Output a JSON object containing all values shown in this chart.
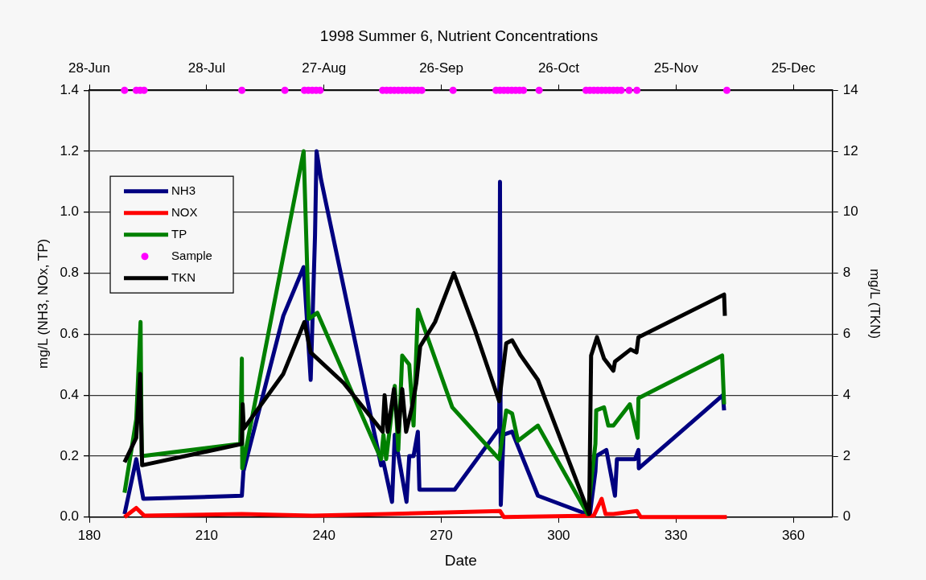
{
  "chart_data": {
    "type": "line",
    "title": "1998 Summer 6, Nutrient Concentrations",
    "xlabel": "Date",
    "ylabel": "mg/L (NH3, NOx, TP)",
    "y2label": "mg/L (TKN)",
    "xlim": [
      180,
      370
    ],
    "xticks": [
      180,
      210,
      240,
      270,
      300,
      330,
      360
    ],
    "x2lim": [
      "1998-06-28",
      "1999-01-04"
    ],
    "x2ticks": [
      {
        "value": "1998-06-28",
        "label": "28-Jun"
      },
      {
        "value": "1998-07-28",
        "label": "28-Jul"
      },
      {
        "value": "1998-08-27",
        "label": "27-Aug"
      },
      {
        "value": "1998-09-26",
        "label": "26-Sep"
      },
      {
        "value": "1998-10-26",
        "label": "26-Oct"
      },
      {
        "value": "1998-11-25",
        "label": "25-Nov"
      },
      {
        "value": "1998-12-25",
        "label": "25-Dec"
      }
    ],
    "ylim": [
      0,
      1.4
    ],
    "yticks": [
      {
        "value": 0,
        "label": "0.0"
      },
      {
        "value": 0.2,
        "label": "0.2"
      },
      {
        "value": 0.4,
        "label": "0.4"
      },
      {
        "value": 0.6,
        "label": "0.6"
      },
      {
        "value": 0.8,
        "label": "0.8"
      },
      {
        "value": 1.0,
        "label": "1.0"
      },
      {
        "value": 1.2,
        "label": "1.2"
      },
      {
        "value": 1.4,
        "label": "1.4"
      }
    ],
    "y2lim": [
      0,
      14
    ],
    "y2ticks": [
      0,
      2,
      4,
      6,
      8,
      10,
      12,
      14
    ],
    "grid": "y",
    "legend": "top left",
    "line_style": "solid",
    "series": [
      {
        "name": "NH3",
        "color": "#000080",
        "x": [
          189,
          192,
          193.8,
          219,
          219.4,
          229.6,
          234.8,
          236.6,
          237.7,
          238.1,
          239.2,
          254.6,
          255.2,
          257.4,
          258.1,
          261.1,
          261.8,
          262.9,
          264,
          264.4,
          273.4,
          284.8,
          285,
          285.2,
          285.9,
          288.1,
          294.7,
          307.2,
          308,
          309.4,
          309.6,
          312.2,
          314.4,
          314.9,
          319.5,
          320.4,
          320.5,
          342,
          342.3
        ],
        "values": [
          0.01,
          0.19,
          0.06,
          0.07,
          0.15,
          0.66,
          0.82,
          0.45,
          0.92,
          1.2,
          1.11,
          0.17,
          0.18,
          0.05,
          0.27,
          0.05,
          0.2,
          0.2,
          0.28,
          0.09,
          0.09,
          0.29,
          1.1,
          0.04,
          0.27,
          0.28,
          0.07,
          0.01,
          0.01,
          0.15,
          0.2,
          0.22,
          0.07,
          0.19,
          0.19,
          0.22,
          0.16,
          0.4,
          0.35
        ]
      },
      {
        "name": "NOX",
        "color": "#ff0000",
        "x": [
          189,
          191,
          192,
          194,
          219,
          237,
          256,
          285,
          286,
          309,
          311,
          312,
          314,
          320,
          321,
          343
        ],
        "values": [
          0,
          0.02,
          0.03,
          0.005,
          0.01,
          0.005,
          0.01,
          0.02,
          0,
          0.005,
          0.06,
          0.01,
          0.01,
          0.02,
          0,
          0
        ]
      },
      {
        "name": "TP",
        "color": "#008000",
        "x": [
          189,
          192,
          193.1,
          193.4,
          218.6,
          219,
          219.1,
          234.8,
          236.1,
          238.3,
          254.6,
          255.2,
          255.9,
          258.1,
          259,
          260,
          261.8,
          262.9,
          264,
          265.1,
          272.8,
          284.8,
          286.6,
          288.1,
          289.6,
          294.7,
          307.4,
          309.4,
          309.6,
          311.6,
          312.7,
          314,
          318.2,
          320.2,
          320.4,
          341.8,
          342.3
        ],
        "values": [
          0.08,
          0.32,
          0.64,
          0.2,
          0.24,
          0.52,
          0.16,
          1.2,
          0.65,
          0.67,
          0.19,
          0.27,
          0.19,
          0.43,
          0.22,
          0.53,
          0.5,
          0.3,
          0.68,
          0.64,
          0.36,
          0.19,
          0.35,
          0.34,
          0.25,
          0.3,
          0.01,
          0.24,
          0.35,
          0.36,
          0.3,
          0.3,
          0.37,
          0.26,
          0.39,
          0.53,
          0.37
        ]
      },
      {
        "name": "Sample",
        "type": "scatter",
        "marker": "circle",
        "color": "#ff00ff",
        "x": [
          189,
          192,
          193,
          194,
          219,
          230,
          235,
          236,
          237,
          238,
          239,
          255,
          256,
          257,
          258,
          259,
          260,
          261,
          262,
          263,
          264,
          265,
          273,
          284,
          285,
          286,
          287,
          288,
          289,
          290,
          291,
          295,
          307,
          308,
          309,
          310,
          311,
          312,
          313,
          314,
          315,
          316,
          318,
          320,
          343
        ],
        "values": [
          1.4,
          1.4,
          1.4,
          1.4,
          1.4,
          1.4,
          1.4,
          1.4,
          1.4,
          1.4,
          1.4,
          1.4,
          1.4,
          1.4,
          1.4,
          1.4,
          1.4,
          1.4,
          1.4,
          1.4,
          1.4,
          1.4,
          1.4,
          1.4,
          1.4,
          1.4,
          1.4,
          1.4,
          1.4,
          1.4,
          1.4,
          1.4,
          1.4,
          1.4,
          1.4,
          1.4,
          1.4,
          1.4,
          1.4,
          1.4,
          1.4,
          1.4,
          1.4,
          1.4,
          1.4
        ]
      },
      {
        "name": "TKN",
        "axis": "y2",
        "color": "#000000",
        "x": [
          189,
          192,
          193,
          193.5,
          219,
          219.2,
          219.5,
          229.6,
          235,
          236.6,
          245,
          255,
          255.5,
          256.3,
          257.9,
          259,
          260,
          261,
          262.5,
          263.6,
          264.6,
          268.4,
          273.2,
          278.7,
          284.8,
          286.6,
          288.1,
          290.3,
          294.7,
          307.8,
          308.3,
          309.8,
          311.6,
          314,
          314.4,
          318.4,
          319.9,
          320.4,
          342.3,
          342.5
        ],
        "values": [
          1.8,
          2.6,
          4.7,
          1.7,
          2.4,
          3.7,
          2.9,
          4.7,
          6.4,
          5.4,
          4.4,
          2.8,
          4.0,
          2.8,
          4.2,
          2.8,
          4.2,
          2.8,
          3.6,
          4.4,
          5.6,
          6.4,
          8.0,
          6.1,
          3.8,
          5.7,
          5.8,
          5.3,
          4.5,
          0.1,
          5.3,
          5.9,
          5.2,
          4.8,
          5.1,
          5.5,
          5.4,
          5.9,
          7.3,
          6.6
        ]
      }
    ]
  }
}
